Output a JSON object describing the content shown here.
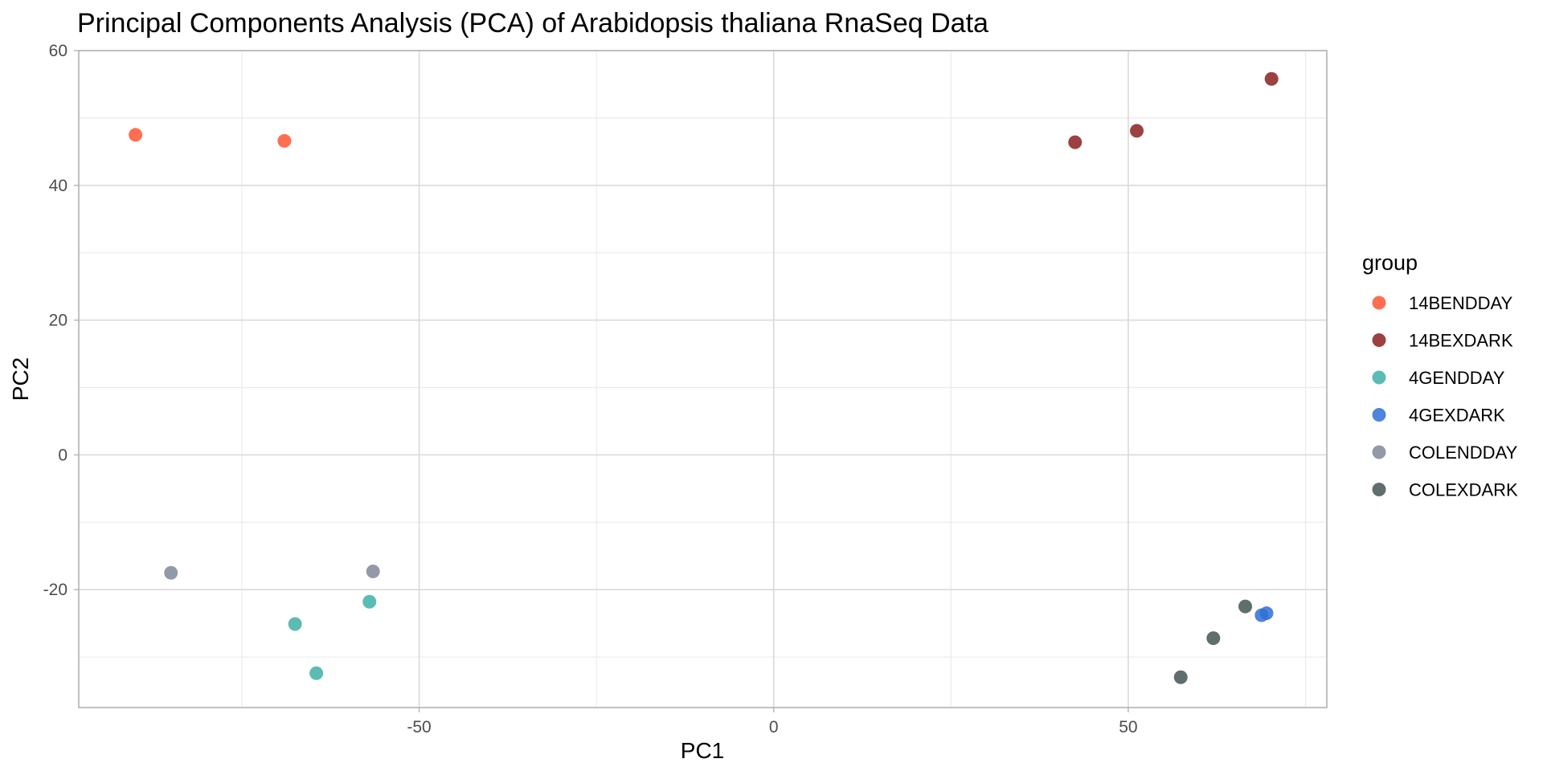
{
  "chart_data": {
    "type": "scatter",
    "title": "Principal Components Analysis (PCA) of Arabidopsis thaliana RnaSeq Data",
    "xlabel": "PC1",
    "ylabel": "PC2",
    "xlim": [
      -98,
      78
    ],
    "ylim": [
      -37.5,
      60
    ],
    "xticks": [
      -50,
      0,
      50
    ],
    "xtick_labels": [
      "-50",
      "0",
      "50"
    ],
    "xminor": [
      -75,
      -25,
      25,
      75
    ],
    "yticks": [
      -20,
      0,
      20,
      40,
      60
    ],
    "ytick_labels": [
      "-20",
      "0",
      "20",
      "40",
      "60"
    ],
    "yminor": [
      -30,
      -10,
      10,
      30,
      50
    ],
    "grid": true,
    "legend": {
      "title": "group",
      "position": "right"
    },
    "series": [
      {
        "name": "14BENDDAY",
        "color": "#FF5533",
        "points": [
          [
            -90,
            47.5
          ],
          [
            -69,
            46.6
          ]
        ]
      },
      {
        "name": "14BEXDARK",
        "color": "#8B2020",
        "points": [
          [
            42.5,
            46.4
          ],
          [
            51.2,
            48.1
          ],
          [
            70.2,
            55.8
          ]
        ]
      },
      {
        "name": "4GENDDAY",
        "color": "#40B0A6",
        "points": [
          [
            -67.5,
            -25.1
          ],
          [
            -64.5,
            -32.4
          ],
          [
            -57,
            -21.8
          ]
        ]
      },
      {
        "name": "4GEXDARK",
        "color": "#2F6FD6",
        "points": [
          [
            68.8,
            -23.8
          ],
          [
            69.5,
            -23.5
          ]
        ]
      },
      {
        "name": "COLENDDAY",
        "color": "#7F8899",
        "points": [
          [
            -85,
            -17.5
          ],
          [
            -56.5,
            -17.3
          ]
        ]
      },
      {
        "name": "COLEXDARK",
        "color": "#445553",
        "points": [
          [
            57.4,
            -33
          ],
          [
            62,
            -27.2
          ],
          [
            66.5,
            -22.5
          ]
        ]
      }
    ]
  }
}
